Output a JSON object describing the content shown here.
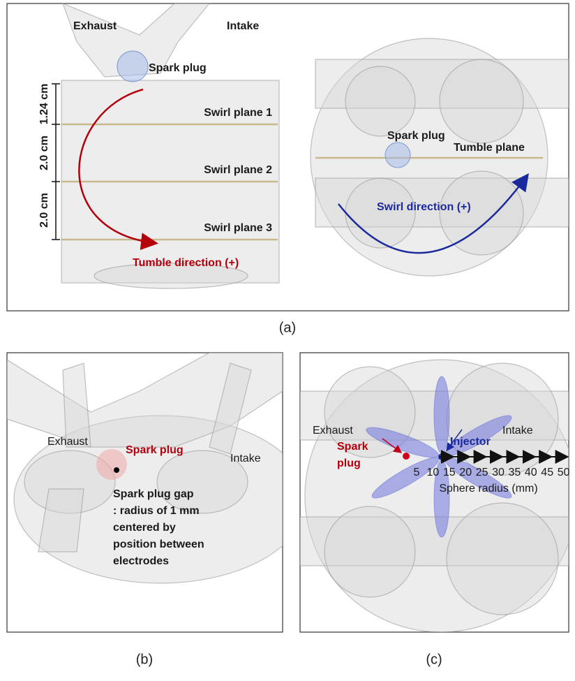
{
  "panel_a": {
    "caption": "(a)",
    "side_view": {
      "exhaust": "Exhaust",
      "intake": "Intake",
      "spark_plug": "Spark plug",
      "swirl_planes": [
        "Swirl plane 1",
        "Swirl plane 2",
        "Swirl plane 3"
      ],
      "dimensions": [
        "1.24 cm",
        "2.0 cm",
        "2.0 cm"
      ],
      "tumble_direction": "Tumble direction (+)"
    },
    "top_view": {
      "spark_plug": "Spark plug",
      "tumble_plane": "Tumble plane",
      "swirl_direction": "Swirl direction (+)"
    }
  },
  "panel_b": {
    "caption": "(b)",
    "exhaust": "Exhaust",
    "intake": "Intake",
    "spark_plug": "Spark plug",
    "gap_note": [
      "Spark plug gap",
      ": radius of 1 mm",
      "centered by",
      "position between",
      "electrodes"
    ]
  },
  "panel_c": {
    "caption": "(c)",
    "exhaust": "Exhaust",
    "intake": "Intake",
    "injector": "Injector",
    "spark_plug": [
      "Spark",
      "plug"
    ],
    "sphere_radii": [
      5,
      10,
      15,
      20,
      25,
      30,
      35,
      40,
      45,
      50
    ],
    "sphere_radius_label": "Sphere radius (mm)"
  }
}
